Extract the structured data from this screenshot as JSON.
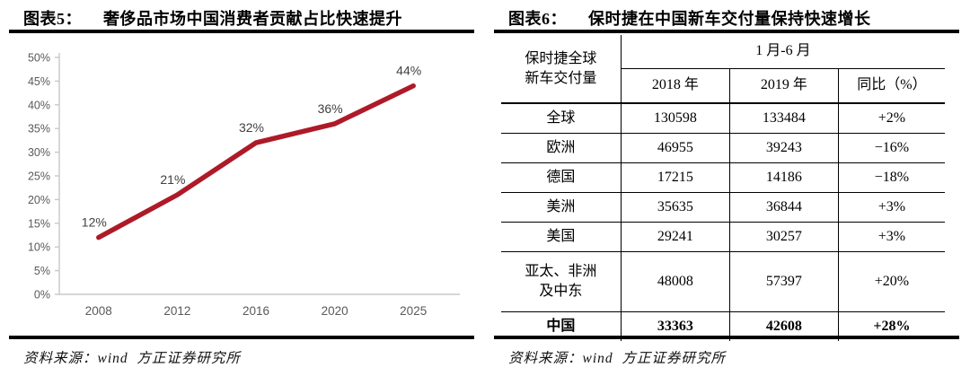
{
  "left_panel": {
    "title_prefix": "图表5：",
    "title": "奢侈品市场中国消费者贡献占比快速提升",
    "source": "资料来源：wind  方正证券研究所"
  },
  "right_panel": {
    "title_prefix": "图表6：",
    "title": "保时捷在中国新车交付量保持快速增长",
    "source": "资料来源：wind  方正证券研究所"
  },
  "chart_data": {
    "type": "line",
    "title": "",
    "xlabel": "",
    "ylabel": "",
    "categories": [
      "2008",
      "2012",
      "2016",
      "2020",
      "2025"
    ],
    "values": [
      12,
      21,
      32,
      36,
      44
    ],
    "point_labels": [
      "12%",
      "21%",
      "32%",
      "36%",
      "44%"
    ],
    "ylim": [
      0,
      50
    ],
    "ytick_step": 5,
    "ytick_suffix": "%",
    "grid": false,
    "legend": false,
    "line_color": "#AE1A28",
    "axis_color": "#c8c8c8",
    "tick_label_color": "#595959",
    "data_label_color": "#404040"
  },
  "table": {
    "header": {
      "stub_line1": "保时捷全球",
      "stub_line2": "新车交付量",
      "period": "1 月-6 月",
      "col_2018": "2018 年",
      "col_2019": "2019 年",
      "col_yoy": "同比（%）"
    },
    "rows": [
      {
        "region": "全球",
        "y2018": "130598",
        "y2019": "133484",
        "yoy": "+2%",
        "bold": false
      },
      {
        "region": "欧洲",
        "y2018": "46955",
        "y2019": "39243",
        "yoy": "−16%",
        "bold": false
      },
      {
        "region": "德国",
        "y2018": "17215",
        "y2019": "14186",
        "yoy": "−18%",
        "bold": false
      },
      {
        "region": "美洲",
        "y2018": "35635",
        "y2019": "36844",
        "yoy": "+3%",
        "bold": false
      },
      {
        "region": "美国",
        "y2018": "29241",
        "y2019": "30257",
        "yoy": "+3%",
        "bold": false
      },
      {
        "region": "亚太、非洲及中东",
        "region_line1": "亚太、非洲",
        "region_line2": "及中东",
        "y2018": "48008",
        "y2019": "57397",
        "yoy": "+20%",
        "bold": false
      },
      {
        "region": "中国",
        "y2018": "33363",
        "y2019": "42608",
        "yoy": "+28%",
        "bold": true
      }
    ]
  }
}
